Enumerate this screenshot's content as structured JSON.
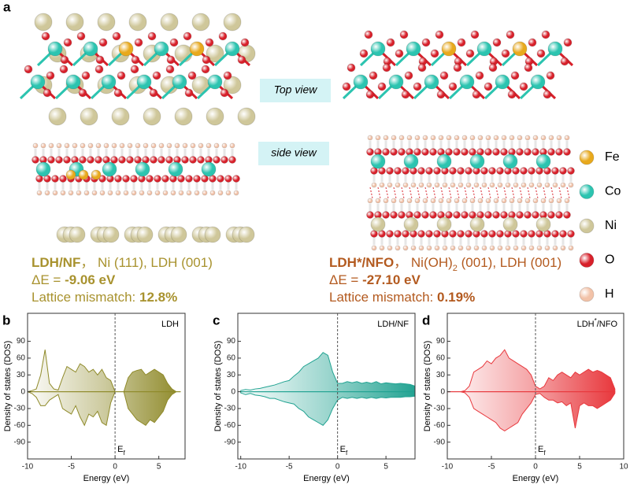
{
  "panel_a": {
    "label": "a",
    "top_view": "Top view",
    "side_view": "side view",
    "left": {
      "name": "LDH/NF",
      "facets": "， Ni (111), LDH (001)",
      "energy_label": "ΔE = ",
      "energy": "-9.06 eV",
      "mismatch_label": "Lattice mismatch: ",
      "mismatch": "12.8%"
    },
    "right": {
      "name": "LDH*/NFO",
      "facets": "， Ni(OH)",
      "facets_sub": "2",
      "facets_end": " (001), LDH (001)",
      "energy_label": "ΔE = ",
      "energy": "-27.10 eV",
      "mismatch_label": "Lattice mismatch: ",
      "mismatch": "0.19%"
    },
    "legend": [
      {
        "label": "Fe",
        "color": "#e8a91c"
      },
      {
        "label": "Co",
        "color": "#2cc4b0"
      },
      {
        "label": "Ni",
        "color": "#cfc79a"
      },
      {
        "label": "O",
        "color": "#d8202a"
      },
      {
        "label": "H",
        "color": "#f2c2a8"
      }
    ]
  },
  "chart_data": [
    {
      "type": "area",
      "panel_label": "b",
      "title": "LDH",
      "xlabel": "Energy (eV)",
      "ylabel": "Density of states (DOS)",
      "fermi_level": 0,
      "fermi_label": "E",
      "fermi_label_sub": "f",
      "xlim": [
        -10,
        8
      ],
      "xticks": [
        -10,
        -5,
        0,
        5
      ],
      "ylim": [
        -120,
        140
      ],
      "yticks": [
        -90,
        -60,
        -30,
        0,
        30,
        60,
        90
      ],
      "x": [
        -10,
        -9.5,
        -9,
        -8.5,
        -8,
        -7.5,
        -7,
        -6.5,
        -6,
        -5.5,
        -5,
        -4.5,
        -4,
        -3.5,
        -3,
        -2.5,
        -2,
        -1.5,
        -1,
        -0.5,
        0,
        0.5,
        1,
        1.5,
        2,
        2.5,
        3,
        3.5,
        4,
        4.5,
        5,
        5.5,
        6,
        6.5,
        7,
        7.5
      ],
      "series": [
        {
          "color": "#8f8a2a",
          "values": [
            0,
            2,
            5,
            30,
            75,
            15,
            5,
            3,
            25,
            45,
            40,
            35,
            50,
            45,
            35,
            40,
            30,
            40,
            25,
            20,
            0,
            0,
            0,
            25,
            35,
            38,
            40,
            30,
            35,
            40,
            35,
            30,
            15,
            5,
            0,
            0
          ]
        },
        {
          "color": "#8f8a2a",
          "values": [
            0,
            -3,
            -10,
            -25,
            -25,
            -15,
            -10,
            -5,
            -30,
            -35,
            -40,
            -25,
            -45,
            -60,
            -40,
            -45,
            -35,
            -55,
            -60,
            -20,
            0,
            0,
            0,
            -30,
            -40,
            -50,
            -55,
            -60,
            -50,
            -55,
            -45,
            -35,
            -15,
            -5,
            0,
            0
          ]
        }
      ]
    },
    {
      "type": "area",
      "panel_label": "c",
      "title": "LDH/NF",
      "xlabel": "Energy (eV)",
      "ylabel": "Density of states (DOS)",
      "fermi_level": 0,
      "fermi_label": "E",
      "fermi_label_sub": "f",
      "xlim": [
        -10.3,
        8
      ],
      "xticks": [
        -10,
        -5,
        0,
        5
      ],
      "ylim": [
        -120,
        140
      ],
      "yticks": [
        -90,
        -60,
        -30,
        0,
        30,
        60,
        90
      ],
      "x": [
        -10,
        -9.5,
        -9,
        -8.5,
        -8,
        -7.5,
        -7,
        -6.5,
        -6,
        -5.5,
        -5,
        -4.5,
        -4,
        -3.5,
        -3,
        -2.5,
        -2,
        -1.5,
        -1,
        -0.5,
        0,
        0.5,
        1,
        1.5,
        2,
        2.5,
        3,
        3.5,
        4,
        4.5,
        5,
        5.5,
        6,
        6.5,
        7,
        7.5,
        8
      ],
      "series": [
        {
          "color": "#22a392",
          "values": [
            2,
            4,
            3,
            5,
            6,
            8,
            10,
            12,
            15,
            18,
            20,
            28,
            35,
            45,
            50,
            55,
            60,
            70,
            65,
            35,
            15,
            15,
            18,
            16,
            18,
            15,
            17,
            15,
            18,
            14,
            16,
            15,
            14,
            15,
            14,
            13,
            10
          ]
        },
        {
          "color": "#22a392",
          "values": [
            -2,
            -5,
            -3,
            -6,
            -7,
            -9,
            -12,
            -12,
            -15,
            -18,
            -20,
            -22,
            -30,
            -35,
            -45,
            -50,
            -55,
            -60,
            -50,
            -30,
            -15,
            -10,
            -12,
            -10,
            -12,
            -10,
            -12,
            -10,
            -12,
            -10,
            -11,
            -10,
            -10,
            -10,
            -9,
            -9,
            -8
          ]
        }
      ]
    },
    {
      "type": "area",
      "panel_label": "d",
      "title": "LDH",
      "title_sup": "*",
      "title_end": "/NFO",
      "xlabel": "Energy (eV)",
      "ylabel": "Density of states (DOS)",
      "fermi_level": 0,
      "fermi_label": "E",
      "fermi_label_sub": "f",
      "xlim": [
        -10,
        10
      ],
      "xticks": [
        -10,
        -5,
        0,
        5,
        10
      ],
      "ylim": [
        -120,
        140
      ],
      "yticks": [
        -90,
        -60,
        -30,
        0,
        30,
        60,
        90
      ],
      "x": [
        -10,
        -9.5,
        -9,
        -8.5,
        -8,
        -7.5,
        -7,
        -6.5,
        -6,
        -5.5,
        -5,
        -4.5,
        -4,
        -3.5,
        -3,
        -2.5,
        -2,
        -1.5,
        -1,
        -0.5,
        0,
        0.5,
        1,
        1.5,
        2,
        2.5,
        3,
        3.5,
        4,
        4.5,
        5,
        5.5,
        6,
        6.5,
        7,
        7.5,
        8,
        8.5,
        9
      ],
      "series": [
        {
          "color": "#e8383d",
          "values": [
            0,
            0,
            0,
            0,
            2,
            10,
            35,
            40,
            45,
            55,
            50,
            60,
            65,
            75,
            60,
            55,
            50,
            45,
            40,
            30,
            10,
            5,
            10,
            25,
            20,
            30,
            35,
            30,
            25,
            35,
            30,
            35,
            40,
            35,
            38,
            35,
            30,
            25,
            5
          ]
        },
        {
          "color": "#e8383d",
          "values": [
            0,
            0,
            0,
            0,
            -2,
            -10,
            -30,
            -35,
            -40,
            -45,
            -50,
            -55,
            -65,
            -70,
            -65,
            -60,
            -55,
            -40,
            -30,
            -20,
            -5,
            -3,
            -10,
            -15,
            -15,
            -20,
            -18,
            -25,
            -20,
            -65,
            -25,
            -20,
            -25,
            -25,
            -30,
            -25,
            -20,
            -15,
            -3
          ]
        }
      ]
    }
  ]
}
